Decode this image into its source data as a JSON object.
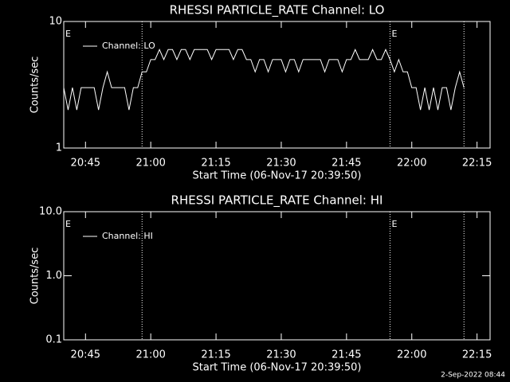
{
  "chart_data": [
    {
      "type": "line",
      "title": "RHESSI PARTICLE_RATE Channel: LO",
      "xlabel": "Start Time (06-Nov-17 20:39:50)",
      "ylabel": "Counts/sec",
      "x": [
        "20:40",
        "20:41",
        "20:42",
        "20:43",
        "20:44",
        "20:45",
        "20:46",
        "20:47",
        "20:48",
        "20:49",
        "20:50",
        "20:51",
        "20:52",
        "20:53",
        "20:54",
        "20:55",
        "20:56",
        "20:57",
        "20:58",
        "20:59",
        "21:00",
        "21:01",
        "21:02",
        "21:03",
        "21:04",
        "21:05",
        "21:06",
        "21:07",
        "21:08",
        "21:09",
        "21:10",
        "21:11",
        "21:12",
        "21:13",
        "21:14",
        "21:15",
        "21:16",
        "21:17",
        "21:18",
        "21:19",
        "21:20",
        "21:21",
        "21:22",
        "21:23",
        "21:24",
        "21:25",
        "21:26",
        "21:27",
        "21:28",
        "21:29",
        "21:30",
        "21:31",
        "21:32",
        "21:33",
        "21:34",
        "21:35",
        "21:36",
        "21:37",
        "21:38",
        "21:39",
        "21:40",
        "21:41",
        "21:42",
        "21:43",
        "21:44",
        "21:45",
        "21:46",
        "21:47",
        "21:48",
        "21:49",
        "21:50",
        "21:51",
        "21:52",
        "21:53",
        "21:54",
        "21:55",
        "21:56",
        "21:57",
        "21:58",
        "21:59",
        "22:00",
        "22:01",
        "22:02",
        "22:03",
        "22:04",
        "22:05",
        "22:06",
        "22:07",
        "22:08",
        "22:09",
        "22:10",
        "22:11",
        "22:12"
      ],
      "series": [
        {
          "name": "Channel: LO",
          "color": "#ffffff",
          "values": [
            3,
            2,
            3,
            2,
            3,
            3,
            3,
            3,
            2,
            3,
            4,
            3,
            3,
            3,
            3,
            2,
            3,
            3,
            4,
            4,
            5,
            5,
            6,
            5,
            6,
            6,
            5,
            6,
            6,
            5,
            6,
            6,
            6,
            6,
            5,
            6,
            6,
            6,
            6,
            5,
            6,
            6,
            5,
            5,
            4,
            5,
            5,
            4,
            5,
            5,
            5,
            4,
            5,
            5,
            4,
            5,
            5,
            5,
            5,
            5,
            4,
            5,
            5,
            5,
            4,
            5,
            5,
            6,
            5,
            5,
            5,
            6,
            5,
            5,
            6,
            5,
            4,
            5,
            4,
            4,
            3,
            3,
            2,
            3,
            2,
            3,
            2,
            3,
            3,
            2,
            3,
            4,
            3
          ]
        }
      ],
      "xlim": [
        "20:40",
        "22:18"
      ],
      "xticks": [
        "20:45",
        "21:00",
        "21:15",
        "21:30",
        "21:45",
        "22:00",
        "22:15"
      ],
      "ylim": [
        1,
        10
      ],
      "yticks": [
        1,
        10
      ],
      "log_y": true,
      "legend": "upper left",
      "vlines": [
        "20:58",
        "21:55",
        "22:12"
      ],
      "annotations": [
        {
          "text": "E",
          "x": "20:40"
        },
        {
          "text": "E",
          "x": "21:55"
        }
      ]
    },
    {
      "type": "line",
      "title": "RHESSI PARTICLE_RATE Channel: HI",
      "xlabel": "Start Time (06-Nov-17 20:39:50)",
      "ylabel": "Counts/sec",
      "series": [
        {
          "name": "Channel: HI",
          "color": "#ffffff",
          "values": []
        }
      ],
      "xlim": [
        "20:40",
        "22:18"
      ],
      "xticks": [
        "20:45",
        "21:00",
        "21:15",
        "21:30",
        "21:45",
        "22:00",
        "22:15"
      ],
      "ylim": [
        0.1,
        10
      ],
      "yticks": [
        0.1,
        {
          "value": 1,
          "label": "1.0"
        },
        {
          "value": 10,
          "label": "10.0"
        }
      ],
      "log_y": true,
      "legend": "upper left",
      "vlines": [
        "20:58",
        "21:55",
        "22:12"
      ],
      "annotations": [
        {
          "text": "E",
          "x": "20:40"
        },
        {
          "text": "E",
          "x": "21:55"
        }
      ]
    }
  ],
  "footer": "2-Sep-2022 08:44"
}
